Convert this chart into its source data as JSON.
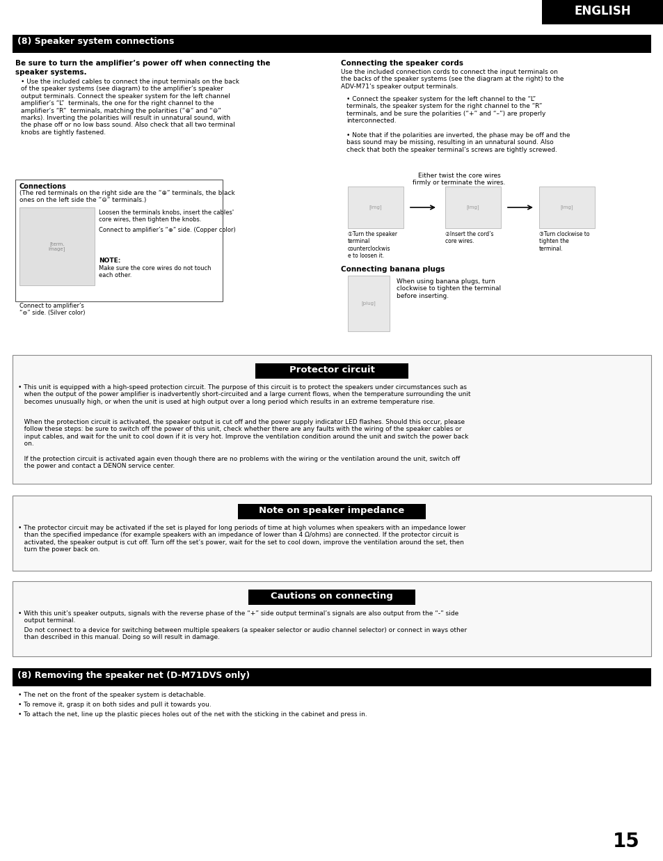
{
  "page_bg": "#ffffff",
  "header_text": "ENGLISH",
  "page_number": "15",
  "s1_header": "(8) Speaker system connections",
  "s1_bold1": "Be sure to turn the amplifier’s power off when connecting the",
  "s1_bold2": "speaker systems.",
  "s1_bullet": "Use the included cables to connect the input terminals on the back\nof the speaker systems (see diagram) to the amplifier’s speaker\noutput terminals. Connect the speaker system for the left channel\namplifier’s “L”  terminals, the one for the right channel to the\namplifier’s “R”  terminals, matching the polarities (“⊕” and “⊖”\nmarks). Inverting the polarities will result in unnatural sound, with\nthe phase off or no low bass sound. Also check that all two terminal\nknobs are tightly fastened.",
  "conn_title": "Connections",
  "conn_sub": "(The red terminals on the right side are the “⊕” terminals, the black\nones on the left side the “⊖” terminals.)",
  "conn_label1": "Loosen the terminals knobs, insert the cables'\ncore wires, then tighten the knobs.",
  "conn_label2": "Connect to amplifier’s “⊕” side. (Copper color)",
  "conn_note_title": "NOTE:",
  "conn_note": "Make sure the core wires do not touch\neach other.",
  "conn_bottom": "Connect to amplifier’s\n“⊖” side. (Silver color)",
  "rc_title": "Connecting the speaker cords",
  "rc_text": "Use the included connection cords to connect the input terminals on\nthe backs of the speaker systems (see the diagram at the right) to the\nADV-M71’s speaker output terminals.",
  "rc_b1": "Connect the speaker system for the left channel to the “L”\nterminals, the speaker system for the right channel to the “R”\nterminals, and be sure the polarities (“+” and “–”) are properly\ninterconnected.",
  "rc_b2": "Note that if the polarities are inverted, the phase may be off and the\nbass sound may be missing, resulting in an unnatural sound. Also\ncheck that both the speaker terminal’s screws are tightly screwed.",
  "rc_caption": "Either twist the core wires\nfirmly or terminate the wires.",
  "rc_step1": "①Turn the speaker\nterminal\ncounterclockwis\ne to loosen it.",
  "rc_step2": "②Insert the cord’s\ncore wires.",
  "rc_step3": "③Turn clockwise to\ntighten the\nterminal.",
  "rc_banana_title": "Connecting banana plugs",
  "rc_banana_text": "When using banana plugs, turn\nclockwise to tighten the terminal\nbefore inserting.",
  "s2_header": "Protector circuit",
  "s2_header_bg": "#000000",
  "s2_p1": "• This unit is equipped with a high-speed protection circuit. The purpose of this circuit is to protect the speakers under circumstances such as\n   when the output of the power amplifier is inadvertently short-circuited and a large current flows, when the temperature surrounding the unit\n   becomes unusually high, or when the unit is used at high output over a long period which results in an extreme temperature rise.",
  "s2_p2": "   When the protection circuit is activated, the speaker output is cut off and the power supply indicator LED flashes. Should this occur, please\n   follow these steps: be sure to switch off the power of this unit, check whether there are any faults with the wiring of the speaker cables or\n   input cables, and wait for the unit to cool down if it is very hot. Improve the ventilation condition around the unit and switch the power back\n   on.",
  "s2_p3": "   If the protection circuit is activated again even though there are no problems with the wiring or the ventilation around the unit, switch off\n   the power and contact a DENON service center.",
  "s3_header": "Note on speaker impedance",
  "s3_header_bg": "#000000",
  "s3_text": "• The protector circuit may be activated if the set is played for long periods of time at high volumes when speakers with an impedance lower\n   than the specified impedance (for example speakers with an impedance of lower than 4 Ω/ohms) are connected. If the protector circuit is\n   activated, the speaker output is cut off. Turn off the set’s power, wait for the set to cool down, improve the ventilation around the set, then\n   turn the power back on.",
  "s4_header": "Cautions on connecting",
  "s4_header_bg": "#000000",
  "s4_p1": "• With this unit’s speaker outputs, signals with the reverse phase of the “+” side output terminal’s signals are also output from the “-” side\n   output terminal.",
  "s4_p2": "   Do not connect to a device for switching between multiple speakers (a speaker selector or audio channel selector) or connect in ways other\n   than described in this manual. Doing so will result in damage.",
  "s5_header": "(8) Removing the speaker net (D-M71DVS only)",
  "s5_b1": "The net on the front of the speaker system is detachable.",
  "s5_b2": "To remove it, grasp it on both sides and pull it towards you.",
  "s5_b3": "To attach the net, line up the plastic pieces holes out of the net with the sticking in the cabinet and press in."
}
